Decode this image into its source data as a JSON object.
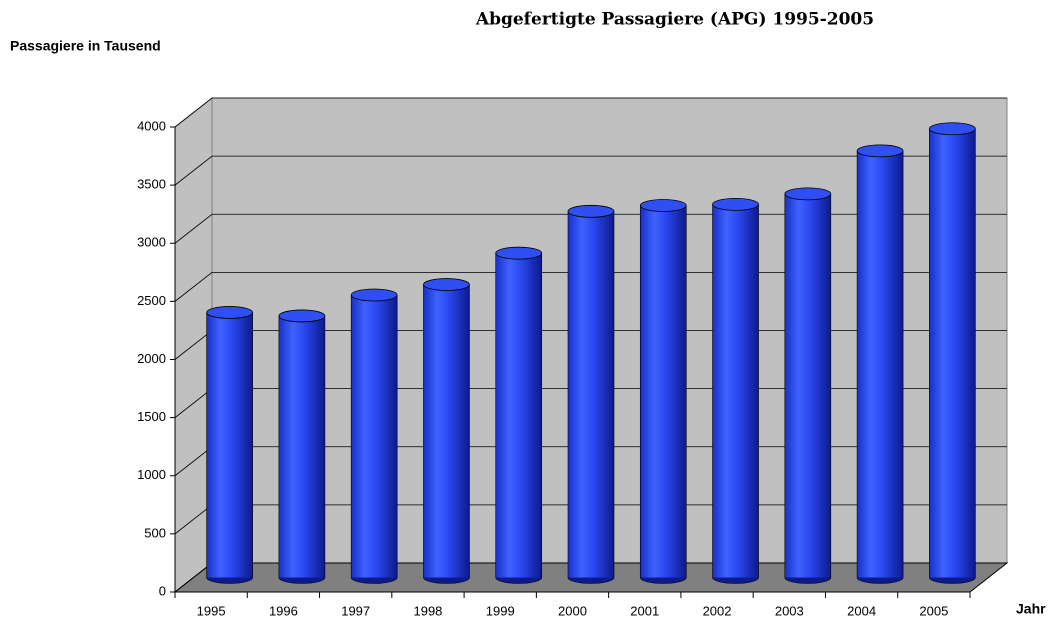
{
  "chart_data": {
    "type": "bar3d",
    "title": "Abgefertigte Passagiere (APG) 1995-2005",
    "y_label": "Passagiere in Tausend",
    "x_label": "Jahr",
    "categories": [
      "1995",
      "1996",
      "1997",
      "1998",
      "1999",
      "2000",
      "2001",
      "2002",
      "2003",
      "2004",
      "2005"
    ],
    "values": [
      2280,
      2250,
      2430,
      2520,
      2790,
      3150,
      3200,
      3210,
      3300,
      3670,
      3860
    ],
    "color": "#2a48f0",
    "ylim": [
      0,
      4000
    ],
    "yticks": [
      0,
      500,
      1000,
      1500,
      2000,
      2500,
      3000,
      3500,
      4000
    ],
    "grid": true
  }
}
